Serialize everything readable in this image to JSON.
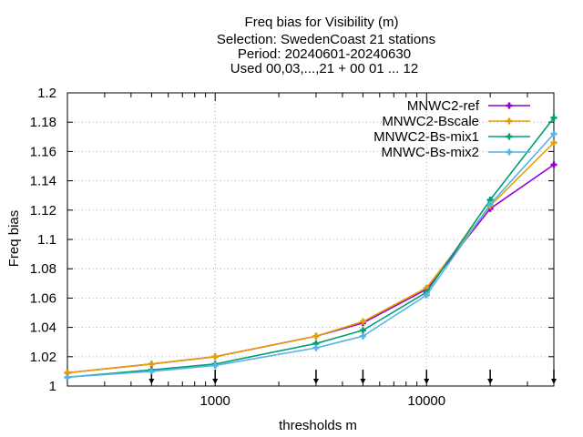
{
  "chart_data": {
    "type": "line",
    "title_lines": [
      "Freq bias  for Visibility (m)",
      "Selection: SwedenCoast      21 stations",
      "Period: 20240601-20240630",
      "Used 00,03,...,21 + 00 01 ... 12"
    ],
    "xlabel": "thresholds m",
    "ylabel": "Freq bias",
    "xscale": "log",
    "xlim": [
      200,
      40000
    ],
    "ylim": [
      1.0,
      1.2
    ],
    "x_ticks": [
      1000,
      10000
    ],
    "x_tick_labels": [
      "1000",
      "10000"
    ],
    "y_ticks": [
      1.0,
      1.02,
      1.04,
      1.06,
      1.08,
      1.1,
      1.12,
      1.14,
      1.16,
      1.18,
      1.2
    ],
    "y_tick_labels": [
      "1",
      "1.02",
      "1.04",
      "1.06",
      "1.08",
      "1.1",
      "1.12",
      "1.14",
      "1.16",
      "1.18",
      "1.2"
    ],
    "threshold_markers": [
      500,
      1000,
      3000,
      5000,
      10000,
      20000,
      40000
    ],
    "grid": true,
    "legend_position": "top-right",
    "x": [
      200,
      500,
      1000,
      3000,
      5000,
      10000,
      20000,
      40000
    ],
    "series": [
      {
        "name": "MNWC2-ref",
        "color": "#9400d3",
        "marker": "plus",
        "values": [
          1.009,
          1.015,
          1.02,
          1.034,
          1.043,
          1.066,
          1.121,
          1.151
        ]
      },
      {
        "name": "MNWC2-Bscale",
        "color": "#e69f00",
        "marker": "plus",
        "values": [
          1.009,
          1.015,
          1.02,
          1.034,
          1.044,
          1.067,
          1.123,
          1.166
        ]
      },
      {
        "name": "MNWC2-Bs-mix1",
        "color": "#009e73",
        "marker": "plus",
        "values": [
          1.006,
          1.011,
          1.015,
          1.029,
          1.038,
          1.064,
          1.127,
          1.183
        ]
      },
      {
        "name": "MNWC-Bs-mix2",
        "color": "#56b4e9",
        "marker": "plus",
        "values": [
          1.006,
          1.01,
          1.014,
          1.026,
          1.034,
          1.062,
          1.124,
          1.172
        ]
      }
    ]
  }
}
